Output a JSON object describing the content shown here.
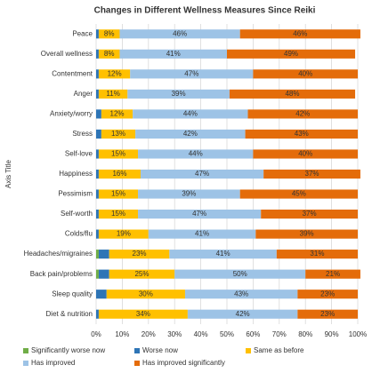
{
  "chart_data": {
    "type": "stacked_bar_horizontal",
    "title": "Changes in Different Wellness Measures Since Reiki",
    "y_label": "Axis Title",
    "categories": [
      "Peace",
      "Overall wellness",
      "Contentment",
      "Anger",
      "Anxiety/worry",
      "Stress",
      "Self-love",
      "Happiness",
      "Pessimism",
      "Self-worth",
      "Colds/flu",
      "Headaches/migraines",
      "Back pain/problems",
      "Sleep quality",
      "Diet & nutrition"
    ],
    "series": [
      {
        "name": "Significantly worse now",
        "color": "#70ad47",
        "values": [
          0,
          0,
          0,
          0,
          0,
          0,
          0,
          0,
          0,
          0,
          0,
          1,
          1,
          0,
          0
        ]
      },
      {
        "name": "Worse now",
        "color": "#2e75b6",
        "values": [
          1,
          1,
          1,
          1,
          2,
          2,
          1,
          1,
          1,
          1,
          1,
          4,
          4,
          4,
          1
        ]
      },
      {
        "name": "Same as before",
        "color": "#ffc000",
        "values": [
          8,
          8,
          12,
          11,
          12,
          13,
          15,
          16,
          15,
          15,
          19,
          23,
          25,
          30,
          34
        ],
        "value_labels": [
          "8%",
          "8%",
          "12%",
          "11%",
          "12%",
          "13%",
          "15%",
          "16%",
          "15%",
          "15%",
          "19%",
          "23%",
          "25%",
          "30%",
          "34%"
        ]
      },
      {
        "name": "Has improved",
        "color": "#9dc3e6",
        "values": [
          46,
          41,
          47,
          39,
          44,
          42,
          44,
          47,
          39,
          47,
          41,
          41,
          50,
          43,
          42
        ],
        "value_labels": [
          "46%",
          "41%",
          "47%",
          "39%",
          "44%",
          "42%",
          "44%",
          "47%",
          "39%",
          "47%",
          "41%",
          "41%",
          "50%",
          "43%",
          "42%"
        ]
      },
      {
        "name": "Has improved significantly",
        "color": "#e46c0a",
        "values": [
          46,
          49,
          40,
          48,
          42,
          43,
          40,
          37,
          45,
          37,
          39,
          31,
          21,
          23,
          23
        ],
        "value_labels": [
          "46%",
          "49%",
          "40%",
          "48%",
          "42%",
          "43%",
          "40%",
          "37%",
          "45%",
          "37%",
          "39%",
          "31%",
          "21%",
          "23%",
          "23%"
        ]
      }
    ],
    "xlim": [
      0,
      100
    ],
    "xticks": [
      {
        "value": 0,
        "label": "0%"
      },
      {
        "value": 10,
        "label": "10%"
      },
      {
        "value": 20,
        "label": "20%"
      },
      {
        "value": 30,
        "label": "30%"
      },
      {
        "value": 40,
        "label": "40%"
      },
      {
        "value": 50,
        "label": "50%"
      },
      {
        "value": 60,
        "label": "60%"
      },
      {
        "value": 70,
        "label": "70%"
      },
      {
        "value": 80,
        "label": "80%"
      },
      {
        "value": 90,
        "label": "90%"
      },
      {
        "value": 100,
        "label": "100%"
      }
    ],
    "grid": true
  }
}
